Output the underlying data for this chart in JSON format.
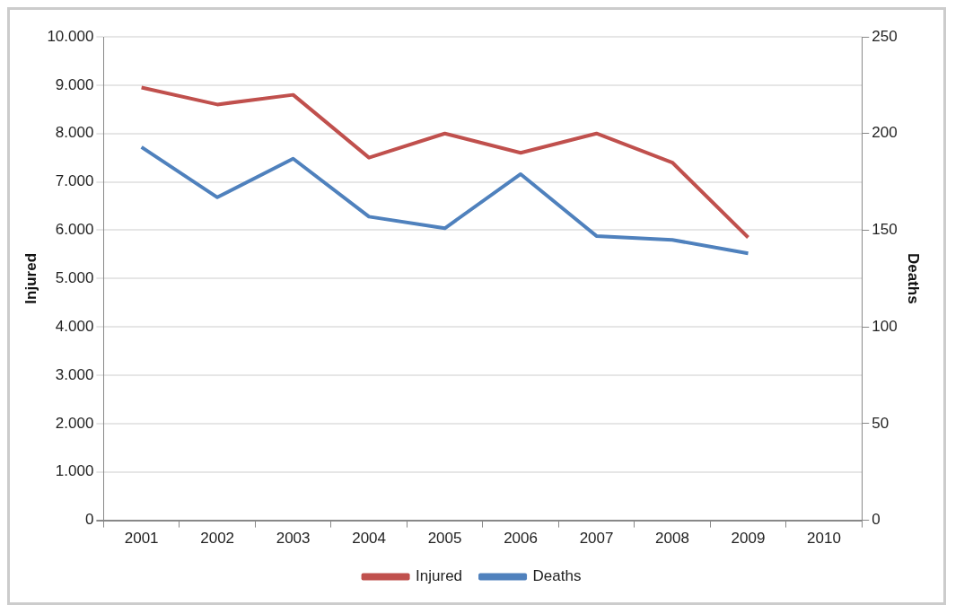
{
  "chart_data": {
    "type": "line",
    "ylabel": "Injured",
    "y2label": "Deaths",
    "categories": [
      "2001",
      "2002",
      "2003",
      "2004",
      "2005",
      "2006",
      "2007",
      "2008",
      "2009",
      "2010"
    ],
    "series": [
      {
        "name": "Injured",
        "color": "#c0504d",
        "values": [
          8950,
          8600,
          8800,
          7500,
          8000,
          7600,
          8000,
          7400,
          5850,
          null
        ]
      },
      {
        "name": "Deaths",
        "color": "#4f81bd",
        "axis": "y2",
        "values": [
          193,
          167,
          187,
          157,
          151,
          179,
          147,
          145,
          138,
          null
        ]
      }
    ],
    "ylim": [
      0,
      10000
    ],
    "yticks": [
      {
        "value": 0,
        "label": "0"
      },
      {
        "value": 1000,
        "label": "1.000"
      },
      {
        "value": 2000,
        "label": "2.000"
      },
      {
        "value": 3000,
        "label": "3.000"
      },
      {
        "value": 4000,
        "label": "4.000"
      },
      {
        "value": 5000,
        "label": "5.000"
      },
      {
        "value": 6000,
        "label": "6.000"
      },
      {
        "value": 7000,
        "label": "7.000"
      },
      {
        "value": 8000,
        "label": "8.000"
      },
      {
        "value": 9000,
        "label": "9.000"
      },
      {
        "value": 10000,
        "label": "10.000"
      }
    ],
    "y2lim": [
      0,
      250
    ],
    "y2ticks": [
      0,
      50,
      100,
      150,
      200,
      250
    ],
    "grid": "y",
    "legend": "bottom",
    "marker": "none",
    "line_style": "solid"
  }
}
